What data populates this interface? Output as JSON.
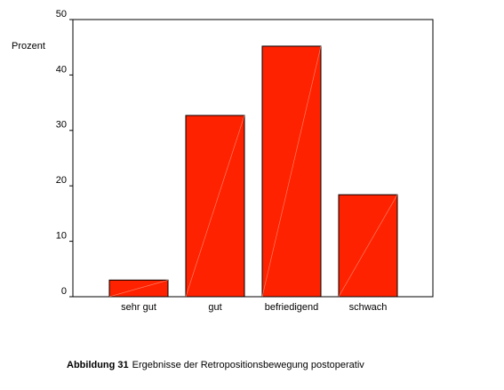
{
  "chart_data": {
    "type": "bar",
    "y_label": "Prozent",
    "categories": [
      "sehr gut",
      "gut",
      "befriedigend",
      "schwach"
    ],
    "values": [
      3.0,
      32.7,
      45.2,
      18.4
    ],
    "color": "#ff2200",
    "ylim": [
      0,
      50
    ],
    "yticks": [
      0,
      10,
      20,
      30,
      40,
      50
    ],
    "grid": false,
    "caption": {
      "label": "Abbildung 31",
      "text": "Ergebnisse der Retropositionsbewegung postoperativ"
    }
  }
}
